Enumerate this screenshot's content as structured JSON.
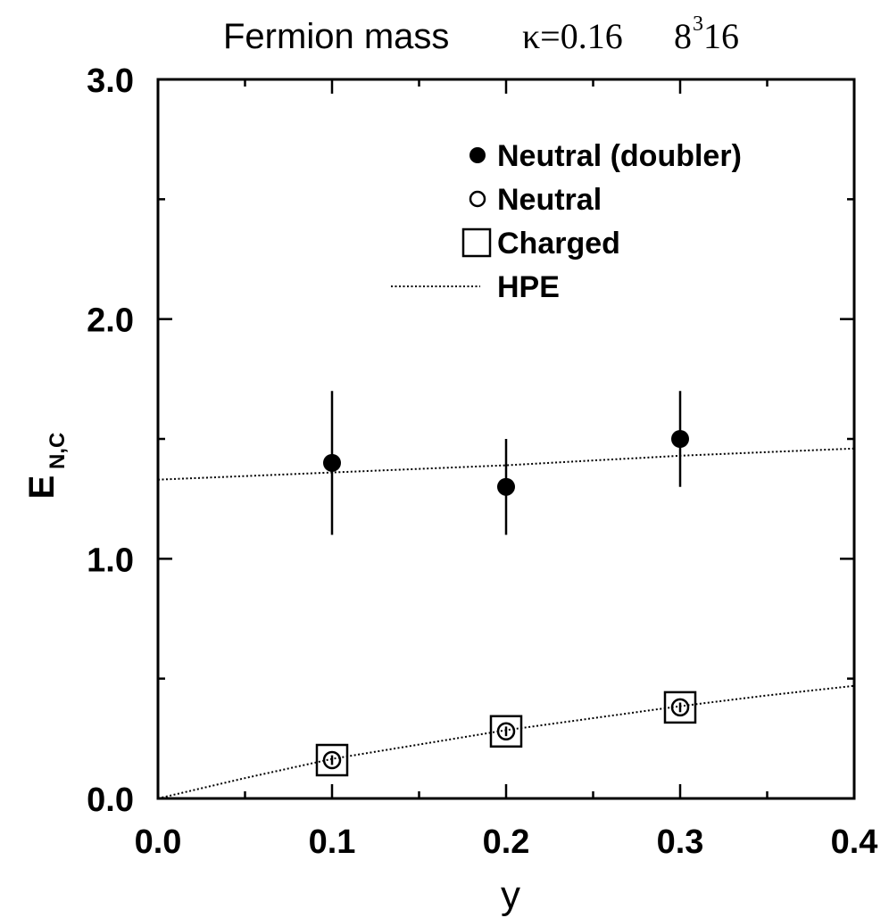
{
  "chart_data": {
    "type": "scatter",
    "title": {
      "prefix": "Fermion mass",
      "kappa": "κ=0.16",
      "lattice_base": "8",
      "lattice_sup": "3",
      "lattice_tail": "16"
    },
    "xlabel": "y",
    "ylabel": {
      "main": "E",
      "sub": "N,C"
    },
    "xlim": [
      0.0,
      0.4
    ],
    "ylim": [
      0.0,
      3.0
    ],
    "x_ticks": [
      "0.0",
      "0.1",
      "0.2",
      "0.3",
      "0.4"
    ],
    "y_ticks": [
      "0.0",
      "1.0",
      "2.0",
      "3.0"
    ],
    "grid": false,
    "legend_position": "top-right",
    "series": [
      {
        "name": "Neutral (doubler)",
        "marker": "filled-circle",
        "points": [
          {
            "x": 0.1,
            "y": 1.4,
            "err_low": 1.1,
            "err_high": 1.7
          },
          {
            "x": 0.2,
            "y": 1.3,
            "err_low": 1.1,
            "err_high": 1.5
          },
          {
            "x": 0.3,
            "y": 1.5,
            "err_low": 1.3,
            "err_high": 1.7
          }
        ]
      },
      {
        "name": "Neutral",
        "marker": "open-circle",
        "points": [
          {
            "x": 0.1,
            "y": 0.16,
            "err_low": 0.14,
            "err_high": 0.18
          },
          {
            "x": 0.2,
            "y": 0.28,
            "err_low": 0.26,
            "err_high": 0.3
          },
          {
            "x": 0.3,
            "y": 0.38,
            "err_low": 0.36,
            "err_high": 0.4
          }
        ]
      },
      {
        "name": "Charged",
        "marker": "open-square",
        "points": [
          {
            "x": 0.1,
            "y": 0.16
          },
          {
            "x": 0.2,
            "y": 0.28
          },
          {
            "x": 0.3,
            "y": 0.38
          }
        ]
      },
      {
        "name": "HPE",
        "marker": "dotted-line",
        "curves": [
          {
            "x": [
              0.0,
              0.1,
              0.2,
              0.3,
              0.4
            ],
            "y": [
              1.33,
              1.36,
              1.39,
              1.43,
              1.46
            ]
          },
          {
            "x": [
              0.0,
              0.05,
              0.1,
              0.15,
              0.2,
              0.25,
              0.3,
              0.35,
              0.4
            ],
            "y": [
              0.0,
              0.085,
              0.165,
              0.225,
              0.285,
              0.335,
              0.385,
              0.43,
              0.47
            ]
          }
        ]
      }
    ]
  }
}
